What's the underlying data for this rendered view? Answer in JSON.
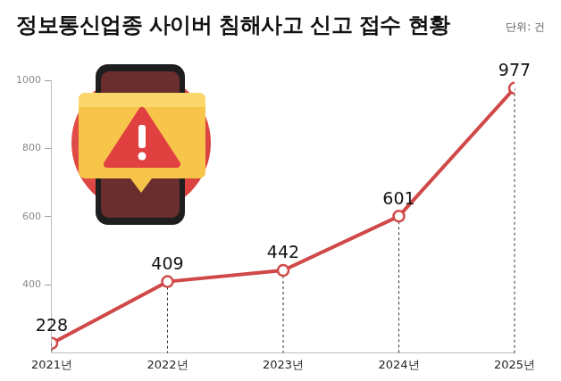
{
  "chart_data": {
    "type": "line",
    "title": "정보통신업종 사이버 침해사고 신고 접수 현황",
    "subtitle": "단위: 건",
    "categories": [
      "2021년",
      "2022년",
      "2023년",
      "2024년",
      "2025년"
    ],
    "values": [
      228,
      409,
      442,
      601,
      977
    ],
    "color": "#d04848",
    "ylim": [
      200,
      1000
    ],
    "yticks": [
      400,
      600,
      800,
      1000
    ],
    "grid": false,
    "data_labels": true,
    "marker": "circle",
    "line_style": "solid"
  }
}
